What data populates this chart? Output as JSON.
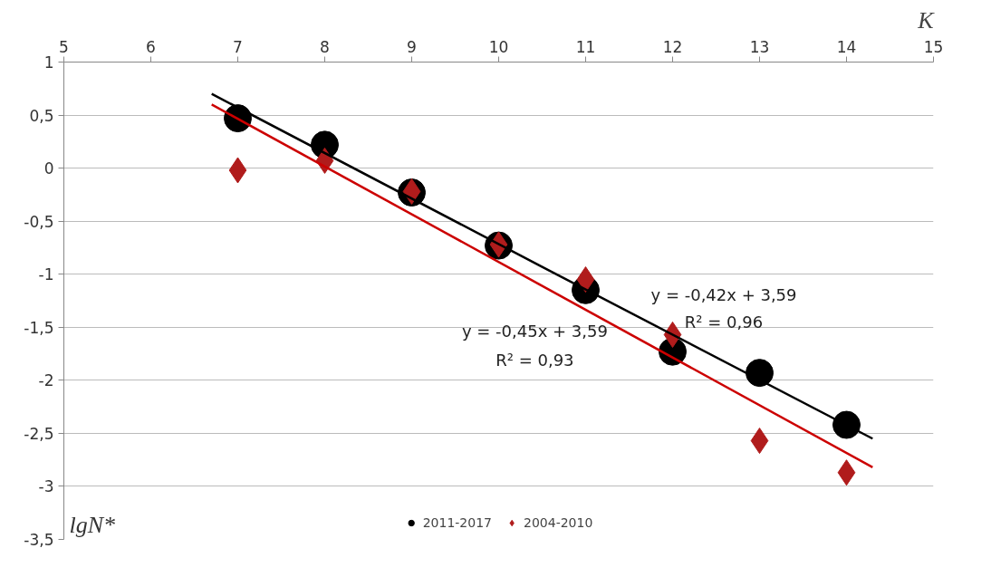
{
  "chart_data": {
    "type": "scatter",
    "xlabel": "K",
    "ylabel": "lgN*",
    "xlim": [
      5,
      15
    ],
    "xticks": [
      5,
      6,
      7,
      8,
      9,
      10,
      11,
      12,
      13,
      14,
      15
    ],
    "ylim": [
      -3.5,
      1
    ],
    "yticks": [
      {
        "value": -3.5,
        "label": "-3,5"
      },
      {
        "value": -3,
        "label": "-3"
      },
      {
        "value": -2.5,
        "label": "-2,5"
      },
      {
        "value": -2,
        "label": "-2"
      },
      {
        "value": -1.5,
        "label": "-1,5"
      },
      {
        "value": -1,
        "label": "-1"
      },
      {
        "value": -0.5,
        "label": "-0,5"
      },
      {
        "value": 0,
        "label": "0"
      },
      {
        "value": 0.5,
        "label": "0,5"
      },
      {
        "value": 1,
        "label": "1"
      }
    ],
    "x": [
      7,
      8,
      9,
      10,
      11,
      12,
      13,
      14
    ],
    "series": [
      {
        "name": "2011-2017",
        "marker": "circle",
        "color": "#000000",
        "values": [
          0.47,
          0.22,
          -0.23,
          -0.73,
          -1.15,
          -1.73,
          -1.93,
          -2.42
        ]
      },
      {
        "name": "2004-2010",
        "marker": "diamond",
        "color": "#b01c1c",
        "values": [
          -0.02,
          0.07,
          -0.22,
          -0.72,
          -1.05,
          -1.57,
          -2.57,
          -2.87
        ]
      },
      {
        "type": "line",
        "color": "#000000",
        "x": [
          6.7,
          10.5,
          14.3
        ],
        "values": [
          0.7,
          -0.93,
          -2.55
        ]
      },
      {
        "type": "line",
        "color": "#cc0000",
        "x": [
          6.7,
          10.5,
          14.3
        ],
        "values": [
          0.6,
          -1.11,
          -2.82
        ]
      }
    ],
    "annotations": [
      "y = -0,42x + 3,59",
      "R² = 0,96",
      "y = -0,45x + 3,59",
      "R² = 0,93"
    ],
    "grid": "y",
    "legend": "bottom"
  }
}
